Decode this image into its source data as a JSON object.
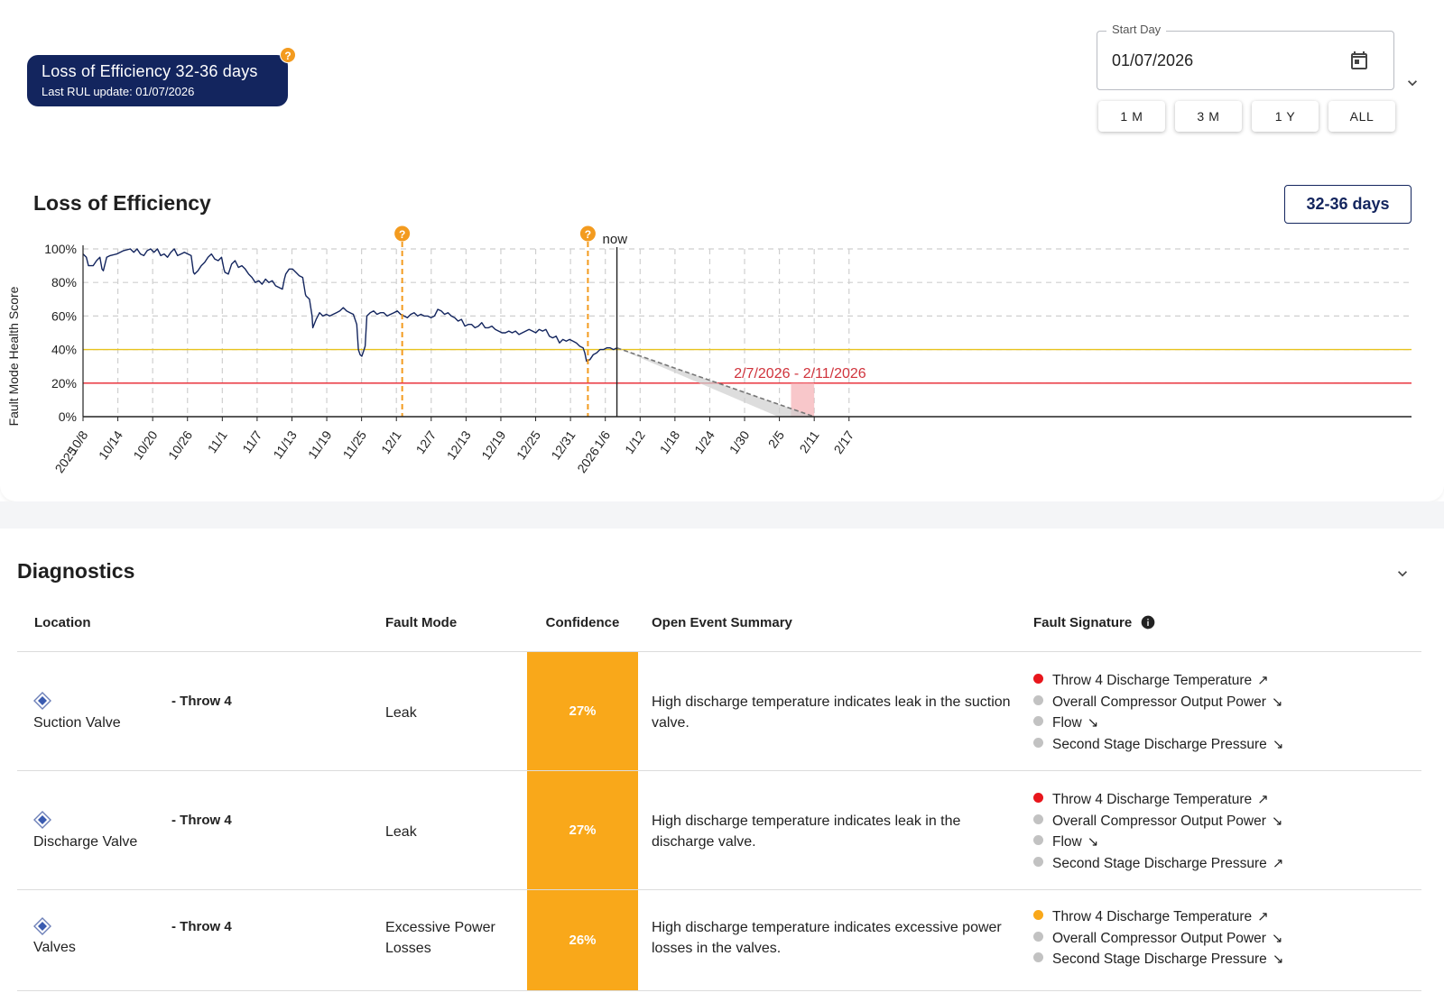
{
  "header": {
    "rul_title": "Loss of Efficiency 32-36 days",
    "rul_subtitle": "Last RUL update: 01/07/2026",
    "help_glyph": "?",
    "start_day_label": "Start Day",
    "start_day_value": "01/07/2026",
    "range_buttons": [
      "1 M",
      "3 M",
      "1 Y",
      "ALL"
    ]
  },
  "chart_section": {
    "title": "Loss of Efficiency",
    "days_badge": "32-36 days"
  },
  "chart_data": {
    "type": "line",
    "ylabel": "Fault Mode Health Score",
    "y_ticks": [
      "0%",
      "20%",
      "40%",
      "60%",
      "80%",
      "100%"
    ],
    "ylim": [
      0,
      100
    ],
    "x_ticks": [
      "10/8",
      "10/14",
      "10/20",
      "10/26",
      "11/1",
      "11/7",
      "11/13",
      "11/19",
      "11/25",
      "12/1",
      "12/7",
      "12/13",
      "12/19",
      "12/25",
      "12/31",
      "1/6",
      "1/12",
      "1/18",
      "1/24",
      "1/30",
      "2/5",
      "2/11",
      "2/17"
    ],
    "x_tick_years": {
      "10/8": "2025",
      "1/6": "2026"
    },
    "xlim_days": [
      0,
      138
    ],
    "grid": true,
    "thresholds": [
      {
        "value": 40,
        "color": "#e8c31e"
      },
      {
        "value": 20,
        "color": "#e8232e"
      }
    ],
    "event_markers": [
      {
        "day": 55,
        "glyph": "?"
      },
      {
        "day": 87,
        "glyph": "?"
      }
    ],
    "now": {
      "day": 92,
      "label": "now"
    },
    "forecast": {
      "start_day": 92,
      "start_value": 41,
      "end_day": 126,
      "end_value": 0
    },
    "failure_window": {
      "label": "2/7/2026 - 2/11/2026",
      "start_day": 122,
      "end_day": 126
    },
    "series": [
      {
        "color": "#13255e",
        "points": [
          [
            0,
            97
          ],
          [
            1,
            95
          ],
          [
            1.6,
            90
          ],
          [
            3,
            90
          ],
          [
            4,
            93
          ],
          [
            5,
            95
          ],
          [
            5.6,
            88
          ],
          [
            6,
            87
          ],
          [
            7,
            95
          ],
          [
            8,
            96
          ],
          [
            10,
            97
          ],
          [
            12,
            99
          ],
          [
            14,
            100
          ],
          [
            15,
            98
          ],
          [
            16,
            100
          ],
          [
            17,
            97
          ],
          [
            18,
            96
          ],
          [
            19,
            99
          ],
          [
            20,
            100
          ],
          [
            21,
            98
          ],
          [
            22,
            100
          ],
          [
            23,
            96
          ],
          [
            24,
            97
          ],
          [
            25,
            95
          ],
          [
            26,
            98
          ],
          [
            27,
            100
          ],
          [
            28,
            96
          ],
          [
            29,
            97
          ],
          [
            30,
            98
          ],
          [
            31,
            97
          ],
          [
            32,
            96
          ],
          [
            32.7,
            86
          ],
          [
            33,
            85
          ],
          [
            34,
            87
          ],
          [
            35,
            90
          ],
          [
            36,
            92
          ],
          [
            37,
            95
          ],
          [
            38,
            97
          ],
          [
            39,
            94
          ],
          [
            40,
            93
          ],
          [
            41,
            95
          ],
          [
            41.7,
            88
          ],
          [
            42,
            86
          ],
          [
            43,
            85
          ],
          [
            44,
            91
          ],
          [
            45,
            93
          ],
          [
            46,
            89
          ],
          [
            47,
            90
          ],
          [
            48,
            88
          ],
          [
            49,
            85
          ],
          [
            50,
            83
          ],
          [
            51,
            80
          ],
          [
            52,
            81
          ],
          [
            53,
            79
          ],
          [
            54,
            82
          ],
          [
            55,
            80
          ],
          [
            56,
            81
          ],
          [
            57,
            78
          ],
          [
            58,
            77
          ],
          [
            59,
            76
          ],
          [
            59.6,
            82
          ],
          [
            60,
            85
          ],
          [
            61,
            88
          ],
          [
            62,
            88
          ],
          [
            63,
            86
          ],
          [
            64,
            84
          ],
          [
            65,
            83
          ],
          [
            65.8,
            73
          ],
          [
            66,
            72
          ],
          [
            67,
            70
          ],
          [
            67.8,
            60
          ],
          [
            68,
            53
          ],
          [
            69,
            58
          ],
          [
            70,
            62
          ],
          [
            71,
            60
          ],
          [
            72,
            61
          ],
          [
            73,
            60
          ],
          [
            74,
            61
          ],
          [
            75,
            62
          ],
          [
            76,
            63
          ],
          [
            77,
            65
          ],
          [
            78,
            63
          ],
          [
            79,
            62
          ],
          [
            80,
            61
          ],
          [
            81,
            55
          ],
          [
            81.5,
            40
          ],
          [
            82,
            37
          ],
          [
            82.5,
            36
          ],
          [
            83,
            39
          ],
          [
            83.5,
            42
          ],
          [
            84,
            60
          ],
          [
            85,
            62
          ],
          [
            86,
            63
          ],
          [
            87,
            61
          ],
          [
            88,
            62
          ],
          [
            89,
            62
          ],
          [
            90,
            60
          ],
          [
            91,
            61
          ],
          [
            92,
            62
          ],
          [
            93,
            63
          ],
          [
            94,
            61
          ],
          [
            95,
            60
          ],
          [
            96,
            59
          ],
          [
            97,
            61
          ],
          [
            98,
            62
          ],
          [
            99,
            60
          ],
          [
            100,
            61
          ],
          [
            101,
            60
          ],
          [
            102,
            60
          ],
          [
            103,
            59
          ],
          [
            104,
            60
          ],
          [
            105,
            64
          ],
          [
            106,
            63
          ],
          [
            107,
            61
          ],
          [
            108,
            62
          ],
          [
            109,
            60
          ],
          [
            110,
            59
          ],
          [
            111,
            57
          ],
          [
            112,
            58
          ],
          [
            113,
            54
          ],
          [
            114,
            55
          ],
          [
            115,
            55
          ],
          [
            116,
            53
          ],
          [
            117,
            54
          ],
          [
            118,
            56
          ],
          [
            119,
            53
          ],
          [
            120,
            53
          ],
          [
            121,
            54
          ],
          [
            122,
            52
          ],
          [
            123,
            51
          ],
          [
            124,
            50
          ],
          [
            125,
            50
          ],
          [
            126,
            51
          ],
          [
            127,
            50
          ],
          [
            128,
            51
          ],
          [
            129,
            49
          ],
          [
            130,
            50
          ],
          [
            131,
            51
          ],
          [
            132,
            52
          ],
          [
            133,
            51
          ],
          [
            134,
            50
          ],
          [
            135,
            52
          ],
          [
            136,
            51
          ],
          [
            137,
            52
          ],
          [
            138,
            48
          ],
          [
            139,
            47
          ],
          [
            140,
            48
          ],
          [
            141,
            44
          ],
          [
            142,
            46
          ],
          [
            143,
            45
          ],
          [
            144,
            46
          ],
          [
            145,
            45
          ],
          [
            146,
            44
          ],
          [
            147,
            42
          ],
          [
            148,
            41
          ],
          [
            148.5,
            38
          ],
          [
            149,
            33
          ],
          [
            150,
            34
          ],
          [
            151,
            37
          ],
          [
            152,
            38
          ],
          [
            153,
            40
          ],
          [
            154,
            40
          ],
          [
            155,
            41
          ],
          [
            156,
            41
          ],
          [
            157,
            40
          ],
          [
            158,
            41
          ]
        ]
      }
    ]
  },
  "diagnostics": {
    "title": "Diagnostics",
    "columns": {
      "location": "Location",
      "fault_mode": "Fault Mode",
      "confidence": "Confidence",
      "summary": "Open Event Summary",
      "signature": "Fault Signature"
    },
    "rows": [
      {
        "location": "Suction Valve",
        "throw": "- Throw 4",
        "fault_mode": "Leak",
        "confidence": "27%",
        "summary": "High discharge temperature indicates leak in the suction valve.",
        "signatures": [
          {
            "label": "Throw 4 Discharge Temperature",
            "color": "#e8161c",
            "trend": "↗"
          },
          {
            "label": "Overall Compressor Output Power",
            "color": "#c2c2c2",
            "trend": "↘"
          },
          {
            "label": "Flow",
            "color": "#c2c2c2",
            "trend": "↘"
          },
          {
            "label": "Second Stage Discharge Pressure",
            "color": "#c2c2c2",
            "trend": "↘"
          }
        ]
      },
      {
        "location": "Discharge Valve",
        "throw": "- Throw 4",
        "fault_mode": "Leak",
        "confidence": "27%",
        "summary": "High discharge temperature indicates leak in the discharge valve.",
        "signatures": [
          {
            "label": "Throw 4 Discharge Temperature",
            "color": "#e8161c",
            "trend": "↗"
          },
          {
            "label": "Overall Compressor Output Power",
            "color": "#c2c2c2",
            "trend": "↘"
          },
          {
            "label": "Flow",
            "color": "#c2c2c2",
            "trend": "↘"
          },
          {
            "label": "Second Stage Discharge Pressure",
            "color": "#c2c2c2",
            "trend": "↗"
          }
        ]
      },
      {
        "location": "Valves",
        "throw": "- Throw 4",
        "fault_mode": "Excessive Power Losses",
        "confidence": "26%",
        "summary": "High discharge temperature indicates excessive power losses in the valves.",
        "signatures": [
          {
            "label": "Throw 4 Discharge Temperature",
            "color": "#f9a81a",
            "trend": "↗"
          },
          {
            "label": "Overall Compressor Output Power",
            "color": "#c2c2c2",
            "trend": "↘"
          },
          {
            "label": "Second Stage Discharge Pressure",
            "color": "#c2c2c2",
            "trend": "↘"
          }
        ]
      }
    ]
  }
}
